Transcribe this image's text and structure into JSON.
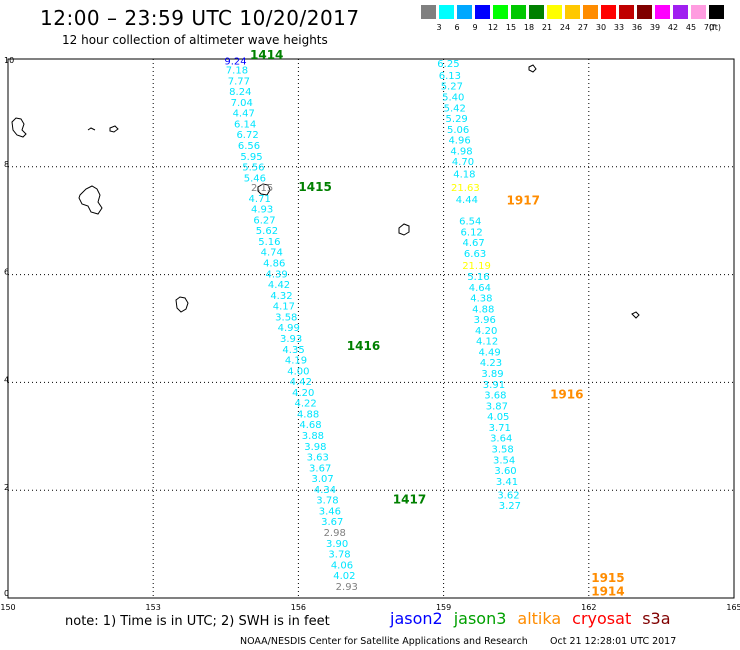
{
  "header": {
    "title": "12:00 – 23:59 UTC 10/20/2017",
    "subtitle": "12 hour collection of altimeter wave heights"
  },
  "legend": {
    "unit": "(ft)",
    "entries": [
      {
        "color": "#808080",
        "label": "3"
      },
      {
        "color": "#00ffff",
        "label": "6"
      },
      {
        "color": "#00a8ff",
        "label": "9"
      },
      {
        "color": "#0000ff",
        "label": "12"
      },
      {
        "color": "#00ff00",
        "label": "15"
      },
      {
        "color": "#00c800",
        "label": "18"
      },
      {
        "color": "#008000",
        "label": "21"
      },
      {
        "color": "#ffff00",
        "label": "24"
      },
      {
        "color": "#ffc800",
        "label": "27"
      },
      {
        "color": "#ff8c00",
        "label": "30"
      },
      {
        "color": "#ff0000",
        "label": "33"
      },
      {
        "color": "#c00000",
        "label": "36"
      },
      {
        "color": "#800000",
        "label": "39"
      },
      {
        "color": "#ff00ff",
        "label": "42"
      },
      {
        "color": "#a020f0",
        "label": "45"
      },
      {
        "color": "#ff9ce0",
        "label": "70"
      },
      {
        "color": "#000000",
        "label": ""
      }
    ]
  },
  "map": {
    "lon_ticks": [
      "150",
      "153",
      "156",
      "159",
      "162",
      "165"
    ],
    "lat_ticks": [
      "0",
      "2",
      "4",
      "6",
      "8",
      "10"
    ],
    "lon_range": [
      150,
      165
    ],
    "lat_range": [
      0,
      10
    ],
    "grid": "dotted"
  },
  "tracks": [
    {
      "label": "1414",
      "label_color": "#008000",
      "lat": 10,
      "lon": 155.0,
      "points": [
        {
          "lat": 9.9,
          "lon": 154.7,
          "v": "9.24",
          "color": "#0000ff"
        },
        {
          "lat": 9.73,
          "lon": 154.73,
          "v": "7.18"
        },
        {
          "lat": 9.53,
          "lon": 154.77,
          "v": "7.77"
        },
        {
          "lat": 9.33,
          "lon": 154.8,
          "v": "8.24"
        },
        {
          "lat": 9.13,
          "lon": 154.83,
          "v": "7.04"
        },
        {
          "lat": 8.93,
          "lon": 154.87,
          "v": "4.47"
        },
        {
          "lat": 8.73,
          "lon": 154.9,
          "v": "6.14"
        },
        {
          "lat": 8.53,
          "lon": 154.95,
          "v": "6.72"
        },
        {
          "lat": 8.33,
          "lon": 154.98,
          "v": "6.56"
        },
        {
          "lat": 8.13,
          "lon": 155.03,
          "v": "5.95"
        },
        {
          "lat": 7.93,
          "lon": 155.07,
          "v": "5.56"
        },
        {
          "lat": 7.73,
          "lon": 155.1,
          "v": "5.46"
        },
        {
          "lat": 7.55,
          "lon": 155.25,
          "v": "2.15",
          "color": "#808080"
        },
        {
          "lat": 7.35,
          "lon": 155.2,
          "v": "4.71"
        },
        {
          "lat": 7.15,
          "lon": 155.25,
          "v": "4.93"
        },
        {
          "lat": 6.95,
          "lon": 155.3,
          "v": "6.27"
        },
        {
          "lat": 6.75,
          "lon": 155.35,
          "v": "5.62"
        },
        {
          "lat": 6.55,
          "lon": 155.4,
          "v": "5.16"
        },
        {
          "lat": 6.35,
          "lon": 155.45,
          "v": "4.74"
        },
        {
          "lat": 6.15,
          "lon": 155.5,
          "v": "4.86"
        },
        {
          "lat": 5.95,
          "lon": 155.55,
          "v": "4.39"
        }
      ]
    },
    {
      "label": "1415",
      "label_color": "#008000",
      "lat": 7.55,
      "lon": 156.0,
      "points": [
        {
          "lat": 5.75,
          "lon": 155.6,
          "v": "4.42"
        },
        {
          "lat": 5.55,
          "lon": 155.65,
          "v": "4.32"
        },
        {
          "lat": 5.35,
          "lon": 155.7,
          "v": "4.17"
        },
        {
          "lat": 5.15,
          "lon": 155.75,
          "v": "3.58"
        },
        {
          "lat": 4.95,
          "lon": 155.8,
          "v": "4.99"
        },
        {
          "lat": 4.75,
          "lon": 155.85,
          "v": "3.93"
        },
        {
          "lat": 4.55,
          "lon": 155.9,
          "v": "4.35"
        },
        {
          "lat": 4.35,
          "lon": 155.95,
          "v": "4.19"
        },
        {
          "lat": 4.15,
          "lon": 156.0,
          "v": "4.00"
        },
        {
          "lat": 3.95,
          "lon": 156.05,
          "v": "4.42"
        },
        {
          "lat": 3.75,
          "lon": 156.1,
          "v": "4.20"
        },
        {
          "lat": 3.55,
          "lon": 156.15,
          "v": "4.22"
        },
        {
          "lat": 3.35,
          "lon": 156.2,
          "v": "4.88"
        },
        {
          "lat": 3.15,
          "lon": 156.25,
          "v": "4.68"
        },
        {
          "lat": 2.95,
          "lon": 156.3,
          "v": "3.88"
        },
        {
          "lat": 2.75,
          "lon": 156.35,
          "v": "3.98"
        },
        {
          "lat": 2.55,
          "lon": 156.4,
          "v": "3.63"
        },
        {
          "lat": 2.35,
          "lon": 156.45,
          "v": "3.67"
        },
        {
          "lat": 2.15,
          "lon": 156.5,
          "v": "3.07"
        }
      ]
    },
    {
      "label": "1416",
      "label_color": "#008000",
      "lat": 4.6,
      "lon": 157.0,
      "points": []
    },
    {
      "label": "1417",
      "label_color": "#008000",
      "lat": 1.75,
      "lon": 157.95,
      "points": [
        {
          "lat": 1.95,
          "lon": 156.55,
          "v": "4.34"
        },
        {
          "lat": 1.75,
          "lon": 156.6,
          "v": "3.78"
        },
        {
          "lat": 1.55,
          "lon": 156.65,
          "v": "3.46"
        },
        {
          "lat": 1.35,
          "lon": 156.7,
          "v": "3.67"
        },
        {
          "lat": 1.15,
          "lon": 156.75,
          "v": "2.98",
          "color": "#808080"
        },
        {
          "lat": 0.95,
          "lon": 156.8,
          "v": "3.90"
        },
        {
          "lat": 0.75,
          "lon": 156.85,
          "v": "3.78"
        },
        {
          "lat": 0.55,
          "lon": 156.9,
          "v": "4.06"
        },
        {
          "lat": 0.35,
          "lon": 156.95,
          "v": "4.02"
        },
        {
          "lat": 0.15,
          "lon": 157.0,
          "v": "2.93",
          "color": "#808080"
        }
      ]
    },
    {
      "label": "1917",
      "label_color": "#ff8c00",
      "lat": 7.3,
      "lon": 160.3,
      "points": [
        {
          "lat": 9.85,
          "lon": 159.1,
          "v": "6.25"
        },
        {
          "lat": 9.63,
          "lon": 159.13,
          "v": "6.13"
        },
        {
          "lat": 9.43,
          "lon": 159.17,
          "v": "5.27"
        },
        {
          "lat": 9.23,
          "lon": 159.2,
          "v": "5.40"
        },
        {
          "lat": 9.03,
          "lon": 159.23,
          "v": "5.42"
        },
        {
          "lat": 8.83,
          "lon": 159.27,
          "v": "5.29"
        },
        {
          "lat": 8.63,
          "lon": 159.3,
          "v": "5.06"
        },
        {
          "lat": 8.43,
          "lon": 159.33,
          "v": "4.96"
        },
        {
          "lat": 8.23,
          "lon": 159.37,
          "v": "4.98"
        },
        {
          "lat": 8.03,
          "lon": 159.4,
          "v": "4.70"
        },
        {
          "lat": 7.8,
          "lon": 159.43,
          "v": "4.18"
        },
        {
          "lat": 7.55,
          "lon": 159.45,
          "v": "21.63",
          "color": "#ffff00"
        },
        {
          "lat": 7.33,
          "lon": 159.48,
          "v": "4.44"
        },
        {
          "lat": 6.93,
          "lon": 159.55,
          "v": "6.54"
        },
        {
          "lat": 6.73,
          "lon": 159.58,
          "v": "6.12"
        },
        {
          "lat": 6.53,
          "lon": 159.62,
          "v": "4.67"
        },
        {
          "lat": 6.33,
          "lon": 159.65,
          "v": "6.63"
        },
        {
          "lat": 6.1,
          "lon": 159.68,
          "v": "21.19",
          "color": "#ffff00"
        }
      ]
    },
    {
      "label": "1916",
      "label_color": "#ff8c00",
      "lat": 3.7,
      "lon": 161.2,
      "points": [
        {
          "lat": 5.9,
          "lon": 159.72,
          "v": "5.16"
        },
        {
          "lat": 5.7,
          "lon": 159.75,
          "v": "4.64"
        },
        {
          "lat": 5.5,
          "lon": 159.78,
          "v": "4.38"
        },
        {
          "lat": 5.3,
          "lon": 159.82,
          "v": "4.88"
        },
        {
          "lat": 5.1,
          "lon": 159.85,
          "v": "3.96"
        },
        {
          "lat": 4.9,
          "lon": 159.88,
          "v": "4.20"
        },
        {
          "lat": 4.7,
          "lon": 159.9,
          "v": "4.12"
        },
        {
          "lat": 4.5,
          "lon": 159.95,
          "v": "4.49"
        },
        {
          "lat": 4.3,
          "lon": 159.98,
          "v": "4.23"
        },
        {
          "lat": 4.1,
          "lon": 160.01,
          "v": "3.89"
        },
        {
          "lat": 3.9,
          "lon": 160.04,
          "v": "3.91"
        },
        {
          "lat": 3.7,
          "lon": 160.07,
          "v": "3.68"
        },
        {
          "lat": 3.5,
          "lon": 160.1,
          "v": "3.87"
        },
        {
          "lat": 3.3,
          "lon": 160.13,
          "v": "4.05"
        },
        {
          "lat": 3.1,
          "lon": 160.16,
          "v": "3.71"
        },
        {
          "lat": 2.9,
          "lon": 160.19,
          "v": "3.64"
        },
        {
          "lat": 2.7,
          "lon": 160.22,
          "v": "3.58"
        },
        {
          "lat": 2.5,
          "lon": 160.25,
          "v": "3.54"
        },
        {
          "lat": 2.3,
          "lon": 160.28,
          "v": "3.60"
        },
        {
          "lat": 2.1,
          "lon": 160.31,
          "v": "3.41"
        },
        {
          "lat": 1.85,
          "lon": 160.34,
          "v": "3.62"
        },
        {
          "lat": 1.65,
          "lon": 160.37,
          "v": "3.27"
        }
      ]
    },
    {
      "label": "1915",
      "label_color": "#ff8c00",
      "lat": 0.3,
      "lon": 162.05,
      "points": []
    },
    {
      "label": "1914",
      "label_color": "#ff8c00",
      "lat": 0.05,
      "lon": 162.05,
      "points": []
    }
  ],
  "footer": {
    "note": "note:  1) Time is in UTC;  2) SWH is in feet",
    "satellites": [
      {
        "name": "jason2",
        "color": "#0000ff"
      },
      {
        "name": "jason3",
        "color": "#00a000"
      },
      {
        "name": "altika",
        "color": "#ff8c00"
      },
      {
        "name": "cryosat",
        "color": "#ff0000"
      },
      {
        "name": "s3a",
        "color": "#800000"
      }
    ],
    "credit": "NOAA/NESDIS Center for Satellite Applications and Research",
    "timestamp": "Oct 21 12:28:01 UTC 2017"
  }
}
